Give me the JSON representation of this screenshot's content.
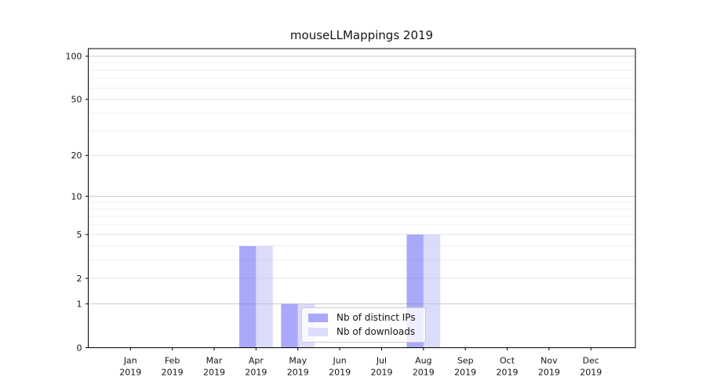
{
  "chart_data": {
    "type": "bar",
    "title": "mouseLLMappings 2019",
    "categories": [
      "Jan 2019",
      "Feb 2019",
      "Mar 2019",
      "Apr 2019",
      "May 2019",
      "Jun 2019",
      "Jul 2019",
      "Aug 2019",
      "Sep 2019",
      "Oct 2019",
      "Nov 2019",
      "Dec 2019"
    ],
    "series": [
      {
        "name": "Nb of distinct IPs",
        "color": "rgba(98,98,246,0.55)",
        "swatch_color": "#a9a9f9",
        "values": [
          0,
          0,
          0,
          4,
          1,
          0,
          0,
          5,
          0,
          0,
          0,
          0
        ]
      },
      {
        "name": "Nb of downloads",
        "color": "rgba(190,190,245,0.55)",
        "swatch_color": "#dcdcfb",
        "values": [
          0,
          0,
          0,
          4,
          1,
          0,
          0,
          5,
          0,
          0,
          0,
          0
        ]
      }
    ],
    "xlabel": "",
    "ylabel": "",
    "yscale": "log1p",
    "ylim": [
      0,
      113
    ],
    "yticks": [
      0,
      1,
      2,
      5,
      10,
      20,
      50,
      100
    ],
    "grid": {
      "decade": [
        1,
        10,
        100
      ],
      "labeled": [
        2,
        5,
        20,
        50
      ],
      "minor": [
        3,
        4,
        6,
        7,
        8,
        9,
        30,
        40,
        60,
        70,
        80,
        90
      ]
    },
    "grid_on": true,
    "legend_position": "lower center"
  },
  "colors": {
    "grid_decade": "#c9c9c9",
    "grid_labeled": "#e3e3e3",
    "grid_minor": "#efefef",
    "spine": "#000000",
    "text": "#151515",
    "background": "#ffffff"
  }
}
